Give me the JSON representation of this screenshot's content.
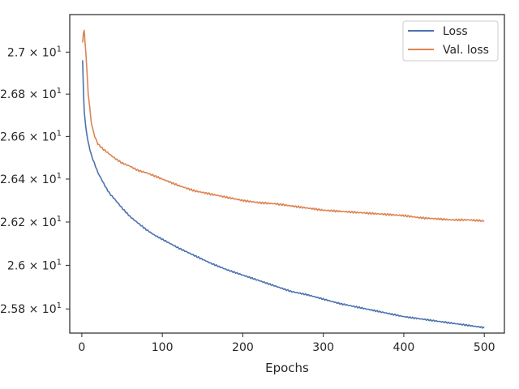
{
  "chart_data": {
    "type": "line",
    "xlabel": "Epochs",
    "ylabel": "",
    "xlim": [
      -15,
      525
    ],
    "ylim": [
      25.69,
      27.18
    ],
    "yscale": "log",
    "grid": false,
    "legend_position": "top-right",
    "x_ticks": [
      {
        "value": 0,
        "label": "0"
      },
      {
        "value": 100,
        "label": "100"
      },
      {
        "value": 200,
        "label": "200"
      },
      {
        "value": 300,
        "label": "300"
      },
      {
        "value": 400,
        "label": "400"
      },
      {
        "value": 500,
        "label": "500"
      }
    ],
    "y_ticks": [
      {
        "value": 25.8,
        "mantissa": "2.58",
        "exponent": "1"
      },
      {
        "value": 26.0,
        "mantissa": "2.6",
        "exponent": "1"
      },
      {
        "value": 26.2,
        "mantissa": "2.62",
        "exponent": "1"
      },
      {
        "value": 26.4,
        "mantissa": "2.64",
        "exponent": "1"
      },
      {
        "value": 26.6,
        "mantissa": "2.66",
        "exponent": "1"
      },
      {
        "value": 26.8,
        "mantissa": "2.68",
        "exponent": "1"
      },
      {
        "value": 27.0,
        "mantissa": "2.7",
        "exponent": "1"
      }
    ],
    "x": [
      1,
      2,
      3,
      5,
      8,
      12,
      16,
      20,
      25,
      30,
      35,
      40,
      50,
      60,
      70,
      80,
      90,
      100,
      120,
      140,
      160,
      180,
      200,
      220,
      240,
      260,
      280,
      300,
      320,
      340,
      360,
      380,
      400,
      420,
      440,
      460,
      480,
      500
    ],
    "series": [
      {
        "name": "Loss",
        "color": "#4c72b0",
        "values": [
          26.96,
          26.82,
          26.72,
          26.64,
          26.57,
          26.51,
          26.47,
          26.43,
          26.395,
          26.36,
          26.33,
          26.31,
          26.265,
          26.225,
          26.195,
          26.165,
          26.14,
          26.12,
          26.08,
          26.045,
          26.01,
          25.98,
          25.955,
          25.93,
          25.905,
          25.88,
          25.865,
          25.845,
          25.825,
          25.81,
          25.795,
          25.78,
          25.765,
          25.755,
          25.745,
          25.735,
          25.725,
          25.715
        ]
      },
      {
        "name": "Val. loss",
        "color": "#dd8452",
        "values": [
          27.05,
          27.09,
          27.1,
          27.0,
          26.8,
          26.66,
          26.6,
          26.565,
          26.545,
          26.53,
          26.515,
          26.5,
          26.475,
          26.46,
          26.44,
          26.43,
          26.415,
          26.4,
          26.37,
          26.345,
          26.33,
          26.315,
          26.3,
          26.29,
          26.285,
          26.275,
          26.265,
          26.255,
          26.25,
          26.245,
          26.24,
          26.235,
          26.23,
          26.22,
          26.215,
          26.21,
          26.21,
          26.205
        ]
      }
    ]
  }
}
